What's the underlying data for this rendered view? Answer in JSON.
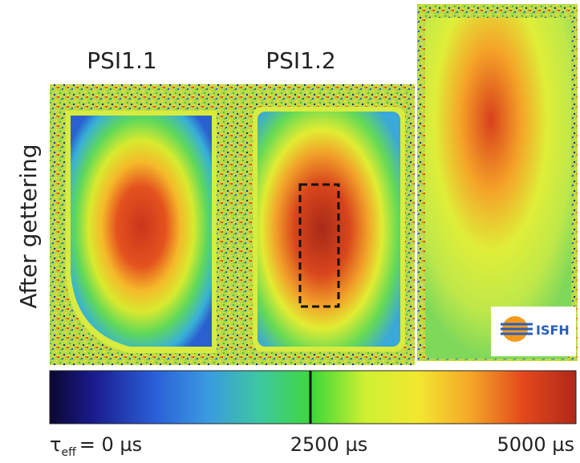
{
  "labels": {
    "sample_1": "PSI1.1",
    "sample_2": "PSI1.2",
    "row_label": "After gettering"
  },
  "logo": "ISFH",
  "colorbar": {
    "symbol": "τ",
    "subscript": "eff",
    "min_label": "= 0 µs",
    "mid_label": "2500 µs",
    "max_label": "5000 µs"
  }
}
